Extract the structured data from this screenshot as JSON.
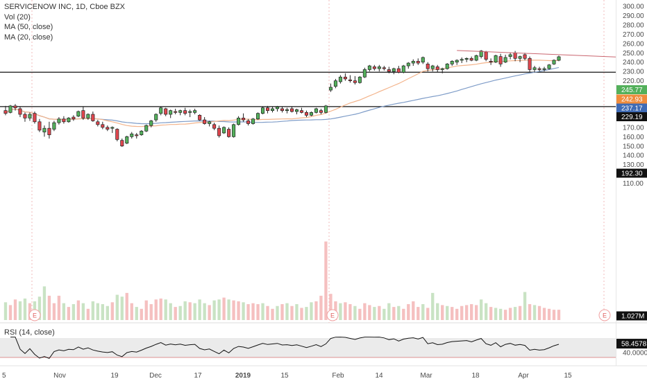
{
  "legend": {
    "title": "SERVICENOW INC, 1D, Cboe BZX",
    "vol": "Vol (20)",
    "ma50": "MA (50, close)",
    "ma20": "MA (20, close)"
  },
  "rsi_legend": "RSI (14, close)",
  "colors": {
    "up": "#53b05b",
    "down": "#e0464e",
    "vol_up": "#c9e3c4",
    "vol_down": "#f5c0c0",
    "ma50": "#7e9cc8",
    "ma20": "#f3b38a",
    "trendline": "#c9646e",
    "price_tag_green": "#53b05b",
    "price_tag_orange": "#f08c3c",
    "price_tag_blue": "#3f6bb5",
    "rsi_band": "#ebebeb"
  },
  "chart_data": {
    "type": "candlestick",
    "price_axis": [
      "300.00",
      "290.00",
      "280.00",
      "270.00",
      "260.00",
      "250.00",
      "240.00",
      "230.00",
      "220.00",
      "210.00",
      "200.00",
      "190.00",
      "180.00",
      "170.00",
      "160.00",
      "150.00",
      "140.00",
      "130.00",
      "120.00",
      "110.00"
    ],
    "price_range": [
      100,
      302
    ],
    "time_axis": [
      "5",
      "Nov",
      "19",
      "Dec",
      "17",
      "2019",
      "15",
      "Feb",
      "14",
      "Mar",
      "18",
      "Apr",
      "15"
    ],
    "time_axis_bold": [
      "2019"
    ],
    "price_tags": [
      {
        "label": "245.77",
        "value": 245.77,
        "color": "green"
      },
      {
        "label": "242.93",
        "value": 242.93,
        "color": "orange"
      },
      {
        "label": "237.17",
        "value": 237.17,
        "color": "blue"
      },
      {
        "label": "229.19",
        "value": 229.19,
        "color": "black"
      },
      {
        "label": "192.30",
        "value": 192.3,
        "color": "black"
      },
      {
        "label": "1.027M",
        "value": 1.027,
        "color": "black"
      }
    ],
    "horizontal_levels": [
      229.19,
      192.3
    ],
    "earnings_markers": [
      "E",
      "E",
      "E",
      "E"
    ],
    "rsi_axis": [
      "58.4578",
      "40.0000"
    ],
    "rsi_value": 58.4578,
    "rsi_band": [
      30,
      70
    ],
    "candles": [
      [
        188,
        193,
        183,
        185
      ],
      [
        186,
        194,
        185,
        193
      ],
      [
        193,
        195,
        188,
        191
      ],
      [
        190,
        192,
        181,
        184
      ],
      [
        184,
        186,
        176,
        180
      ],
      [
        180,
        186,
        177,
        184
      ],
      [
        185,
        187,
        174,
        176
      ],
      [
        176,
        179,
        165,
        167
      ],
      [
        165,
        172,
        160,
        169
      ],
      [
        169,
        176,
        158,
        162
      ],
      [
        168,
        177,
        166,
        175
      ],
      [
        175,
        181,
        173,
        179
      ],
      [
        179,
        182,
        174,
        176
      ],
      [
        176,
        181,
        175,
        180
      ],
      [
        181,
        183,
        177,
        179
      ],
      [
        182,
        188,
        181,
        187
      ],
      [
        188,
        192,
        178,
        180
      ],
      [
        180,
        185,
        178,
        184
      ],
      [
        184,
        187,
        176,
        177
      ],
      [
        176,
        178,
        171,
        173
      ],
      [
        173,
        176,
        168,
        170
      ],
      [
        170,
        172,
        166,
        168
      ],
      [
        169,
        171,
        164,
        170
      ],
      [
        168,
        169,
        155,
        157
      ],
      [
        156,
        158,
        149,
        150
      ],
      [
        153,
        161,
        152,
        160
      ],
      [
        160,
        165,
        158,
        163
      ],
      [
        162,
        164,
        158,
        161
      ],
      [
        162,
        167,
        161,
        166
      ],
      [
        166,
        173,
        165,
        172
      ],
      [
        172,
        178,
        170,
        177
      ],
      [
        178,
        185,
        176,
        184
      ],
      [
        185,
        192,
        183,
        191
      ],
      [
        190,
        191,
        182,
        184
      ],
      [
        184,
        189,
        180,
        188
      ],
      [
        187,
        190,
        184,
        186
      ],
      [
        186,
        189,
        183,
        188
      ],
      [
        188,
        191,
        183,
        185
      ],
      [
        186,
        189,
        181,
        187
      ],
      [
        186,
        190,
        184,
        188
      ],
      [
        183,
        184,
        177,
        178
      ],
      [
        178,
        181,
        173,
        174
      ],
      [
        174,
        177,
        171,
        176
      ],
      [
        173,
        175,
        167,
        169
      ],
      [
        169,
        172,
        159,
        161
      ],
      [
        164,
        171,
        163,
        170
      ],
      [
        168,
        170,
        159,
        160
      ],
      [
        160,
        174,
        159,
        173
      ],
      [
        173,
        182,
        172,
        180
      ],
      [
        180,
        185,
        176,
        178
      ],
      [
        177,
        179,
        172,
        174
      ],
      [
        174,
        180,
        173,
        179
      ],
      [
        179,
        186,
        178,
        185
      ],
      [
        185,
        192,
        184,
        191
      ],
      [
        191,
        193,
        185,
        188
      ],
      [
        188,
        192,
        186,
        190
      ],
      [
        190,
        193,
        187,
        192
      ],
      [
        190,
        192,
        186,
        188
      ],
      [
        188,
        191,
        185,
        189
      ],
      [
        190,
        192,
        186,
        187
      ],
      [
        187,
        190,
        184,
        189
      ],
      [
        188,
        191,
        185,
        186
      ],
      [
        186,
        188,
        181,
        183
      ],
      [
        183,
        187,
        182,
        186
      ],
      [
        186,
        191,
        185,
        190
      ],
      [
        188,
        190,
        184,
        186
      ],
      [
        186,
        194,
        185,
        193
      ],
      [
        210,
        217,
        208,
        213
      ],
      [
        214,
        222,
        212,
        220
      ],
      [
        219,
        226,
        217,
        224
      ],
      [
        224,
        228,
        220,
        222
      ],
      [
        221,
        226,
        218,
        220
      ],
      [
        220,
        225,
        216,
        218
      ],
      [
        218,
        225,
        217,
        224
      ],
      [
        224,
        234,
        223,
        232
      ],
      [
        232,
        237,
        230,
        236
      ],
      [
        235,
        237,
        231,
        233
      ],
      [
        233,
        237,
        230,
        235
      ],
      [
        234,
        236,
        231,
        233
      ],
      [
        232,
        235,
        228,
        230
      ],
      [
        230,
        234,
        227,
        233
      ],
      [
        233,
        236,
        228,
        229
      ],
      [
        229,
        237,
        228,
        236
      ],
      [
        236,
        240,
        233,
        239
      ],
      [
        239,
        243,
        236,
        241
      ],
      [
        241,
        244,
        237,
        239
      ],
      [
        240,
        246,
        238,
        245
      ],
      [
        238,
        240,
        230,
        233
      ],
      [
        233,
        237,
        230,
        236
      ],
      [
        235,
        237,
        229,
        232
      ],
      [
        232,
        234,
        228,
        233
      ],
      [
        233,
        239,
        232,
        238
      ],
      [
        238,
        242,
        236,
        241
      ],
      [
        240,
        243,
        237,
        242
      ],
      [
        242,
        245,
        239,
        243
      ],
      [
        243,
        245,
        240,
        244
      ],
      [
        244,
        246,
        241,
        242
      ],
      [
        242,
        248,
        241,
        247
      ],
      [
        246,
        253,
        244,
        252
      ],
      [
        251,
        252,
        241,
        243
      ],
      [
        241,
        244,
        237,
        240
      ],
      [
        240,
        248,
        239,
        247
      ],
      [
        246,
        249,
        235,
        238
      ],
      [
        240,
        248,
        239,
        245
      ],
      [
        246,
        250,
        243,
        248
      ],
      [
        250,
        252,
        241,
        244
      ],
      [
        244,
        247,
        240,
        246
      ],
      [
        248,
        250,
        242,
        244
      ],
      [
        244,
        246,
        229,
        232
      ],
      [
        232,
        236,
        229,
        234
      ],
      [
        233,
        235,
        230,
        232
      ],
      [
        232,
        235,
        230,
        233
      ],
      [
        233,
        238,
        232,
        237
      ],
      [
        238,
        243,
        237,
        242
      ],
      [
        242,
        247,
        241,
        245.77
      ]
    ],
    "volume": [
      [
        0.95,
        1
      ],
      [
        0.8,
        0
      ],
      [
        1.1,
        0
      ],
      [
        1.0,
        1
      ],
      [
        1.15,
        1
      ],
      [
        0.9,
        0
      ],
      [
        1.0,
        1
      ],
      [
        1.25,
        1
      ],
      [
        1.8,
        1
      ],
      [
        1.3,
        0
      ],
      [
        0.9,
        0
      ],
      [
        1.3,
        0
      ],
      [
        0.9,
        1
      ],
      [
        0.7,
        0
      ],
      [
        0.85,
        1
      ],
      [
        1.05,
        0
      ],
      [
        0.9,
        1
      ],
      [
        0.6,
        0
      ],
      [
        1.0,
        1
      ],
      [
        0.9,
        1
      ],
      [
        0.85,
        1
      ],
      [
        0.75,
        1
      ],
      [
        0.95,
        0
      ],
      [
        1.35,
        1
      ],
      [
        1.25,
        1
      ],
      [
        1.45,
        0
      ],
      [
        0.9,
        0
      ],
      [
        0.7,
        1
      ],
      [
        0.6,
        0
      ],
      [
        1.05,
        0
      ],
      [
        0.85,
        0
      ],
      [
        1.1,
        0
      ],
      [
        1.15,
        0
      ],
      [
        1.1,
        1
      ],
      [
        0.9,
        1
      ],
      [
        0.7,
        0
      ],
      [
        0.75,
        1
      ],
      [
        1.0,
        1
      ],
      [
        0.95,
        0
      ],
      [
        0.9,
        1
      ],
      [
        1.1,
        1
      ],
      [
        0.9,
        1
      ],
      [
        0.8,
        0
      ],
      [
        1.05,
        1
      ],
      [
        1.1,
        1
      ],
      [
        1.2,
        0
      ],
      [
        1.1,
        1
      ],
      [
        1.05,
        0
      ],
      [
        1.0,
        0
      ],
      [
        0.95,
        1
      ],
      [
        0.85,
        0
      ],
      [
        0.9,
        0
      ],
      [
        0.85,
        0
      ],
      [
        0.9,
        1
      ],
      [
        0.75,
        0
      ],
      [
        0.6,
        0
      ],
      [
        0.75,
        1
      ],
      [
        0.85,
        0
      ],
      [
        0.9,
        1
      ],
      [
        0.75,
        0
      ],
      [
        0.85,
        1
      ],
      [
        0.65,
        0
      ],
      [
        0.7,
        1
      ],
      [
        0.95,
        1
      ],
      [
        1.0,
        0
      ],
      [
        1.3,
        0
      ],
      [
        4.2,
        0
      ],
      [
        1.4,
        0
      ],
      [
        1.0,
        0
      ],
      [
        0.9,
        1
      ],
      [
        0.95,
        0
      ],
      [
        0.85,
        0
      ],
      [
        0.75,
        1
      ],
      [
        0.6,
        0
      ],
      [
        0.9,
        0
      ],
      [
        0.8,
        0
      ],
      [
        0.7,
        1
      ],
      [
        0.75,
        0
      ],
      [
        0.6,
        1
      ],
      [
        0.9,
        1
      ],
      [
        0.7,
        0
      ],
      [
        0.75,
        1
      ],
      [
        0.6,
        0
      ],
      [
        0.85,
        0
      ],
      [
        1.0,
        0
      ],
      [
        0.7,
        0
      ],
      [
        0.85,
        1
      ],
      [
        0.65,
        0
      ],
      [
        1.45,
        1
      ],
      [
        0.9,
        1
      ],
      [
        0.8,
        0
      ],
      [
        0.75,
        1
      ],
      [
        0.7,
        0
      ],
      [
        0.6,
        0
      ],
      [
        0.75,
        0
      ],
      [
        0.8,
        0
      ],
      [
        0.85,
        0
      ],
      [
        0.8,
        0
      ],
      [
        1.1,
        1
      ],
      [
        0.9,
        1
      ],
      [
        0.7,
        0
      ],
      [
        0.65,
        1
      ],
      [
        0.6,
        1
      ],
      [
        0.55,
        0
      ],
      [
        0.65,
        0
      ],
      [
        0.7,
        1
      ],
      [
        0.75,
        0
      ],
      [
        1.5,
        1
      ],
      [
        0.85,
        0
      ],
      [
        0.8,
        1
      ],
      [
        0.75,
        0
      ],
      [
        0.65,
        0
      ],
      [
        0.6,
        0
      ],
      [
        0.55,
        0
      ],
      [
        0.55,
        0
      ]
    ]
  }
}
